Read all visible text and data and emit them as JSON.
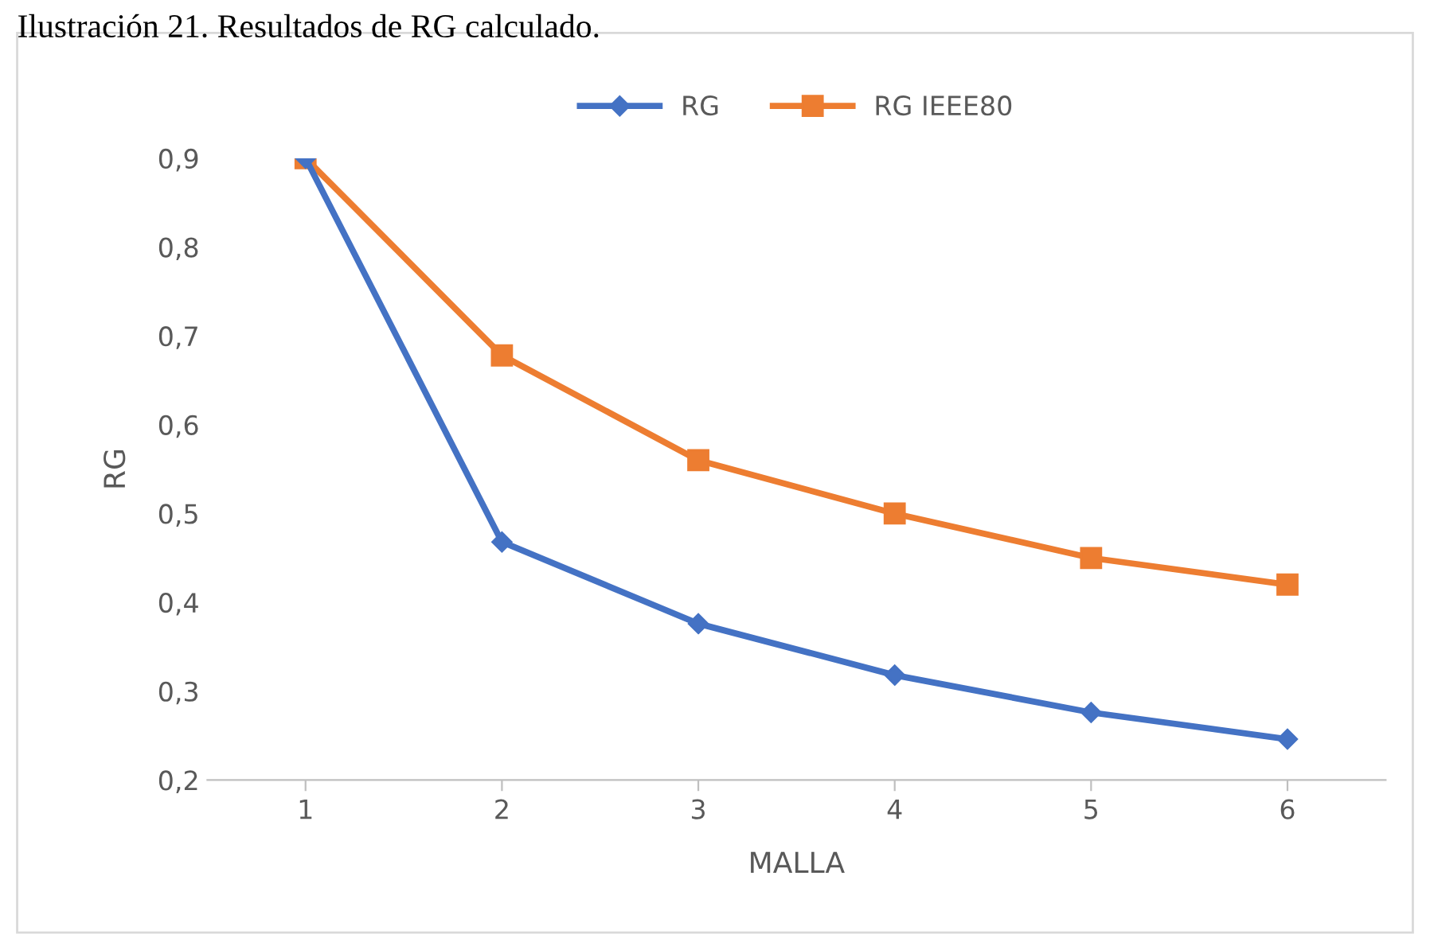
{
  "chart_data": {
    "type": "line",
    "title": "Ilustración 21. Resultados de RG calculado.",
    "xlabel": "MALLA",
    "ylabel": "RG",
    "categories": [
      "1",
      "2",
      "3",
      "4",
      "5",
      "6"
    ],
    "series": [
      {
        "name": "RG",
        "color": "#4472c4",
        "marker": "diamond",
        "values": [
          0.9,
          0.468,
          0.376,
          0.318,
          0.276,
          0.246
        ]
      },
      {
        "name": "RG IEEE80",
        "color": "#ed7d31",
        "marker": "square",
        "values": [
          0.9,
          0.678,
          0.56,
          0.5,
          0.45,
          0.42
        ]
      }
    ],
    "ylim": [
      0.2,
      0.9
    ],
    "yticks": [
      {
        "value": 0.2,
        "label": "0,2"
      },
      {
        "value": 0.3,
        "label": "0,3"
      },
      {
        "value": 0.4,
        "label": "0,4"
      },
      {
        "value": 0.5,
        "label": "0,5"
      },
      {
        "value": 0.6,
        "label": "0,6"
      },
      {
        "value": 0.7,
        "label": "0,7"
      },
      {
        "value": 0.8,
        "label": "0,8"
      },
      {
        "value": 0.9,
        "label": "0,9"
      }
    ],
    "grid": false,
    "legend": "top",
    "line_style": "solid"
  }
}
